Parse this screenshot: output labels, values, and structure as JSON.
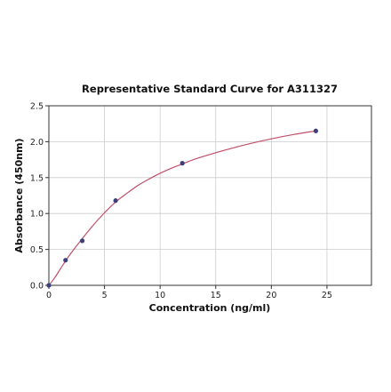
{
  "chart_data": {
    "type": "scatter",
    "title": "Representative Standard Curve for A311327",
    "xlabel": "Concentration (ng/ml)",
    "ylabel": "Absorbance (450nm)",
    "xlim": [
      0,
      29
    ],
    "ylim": [
      0,
      2.5
    ],
    "x_ticks": [
      0,
      5,
      10,
      15,
      20,
      25
    ],
    "y_ticks": [
      0.0,
      0.5,
      1.0,
      1.5,
      2.0,
      2.5
    ],
    "x_tick_labels": [
      "0",
      "5",
      "10",
      "15",
      "20",
      "25"
    ],
    "y_tick_labels": [
      "0.0",
      "0.5",
      "1.0",
      "1.5",
      "2.0",
      "2.5"
    ],
    "grid": true,
    "series": [
      {
        "x": [
          0,
          1.5,
          3,
          6,
          12,
          24
        ],
        "y": [
          0.0,
          0.35,
          0.62,
          1.18,
          1.7,
          2.15
        ]
      }
    ],
    "curve_fit": {
      "x": [
        0,
        0.5,
        1,
        1.5,
        2,
        3,
        4,
        5,
        6,
        7,
        8,
        9,
        10,
        11,
        12,
        13,
        14,
        16,
        18,
        20,
        22,
        24
      ],
      "y": [
        0.0,
        0.1,
        0.22,
        0.34,
        0.45,
        0.65,
        0.84,
        1.01,
        1.16,
        1.28,
        1.39,
        1.48,
        1.56,
        1.63,
        1.69,
        1.75,
        1.8,
        1.89,
        1.97,
        2.04,
        2.1,
        2.15
      ]
    },
    "colors": {
      "point": "#3b3f7a",
      "curve": "#c0506a",
      "grid": "#cccccc",
      "axis": "#333333"
    }
  }
}
